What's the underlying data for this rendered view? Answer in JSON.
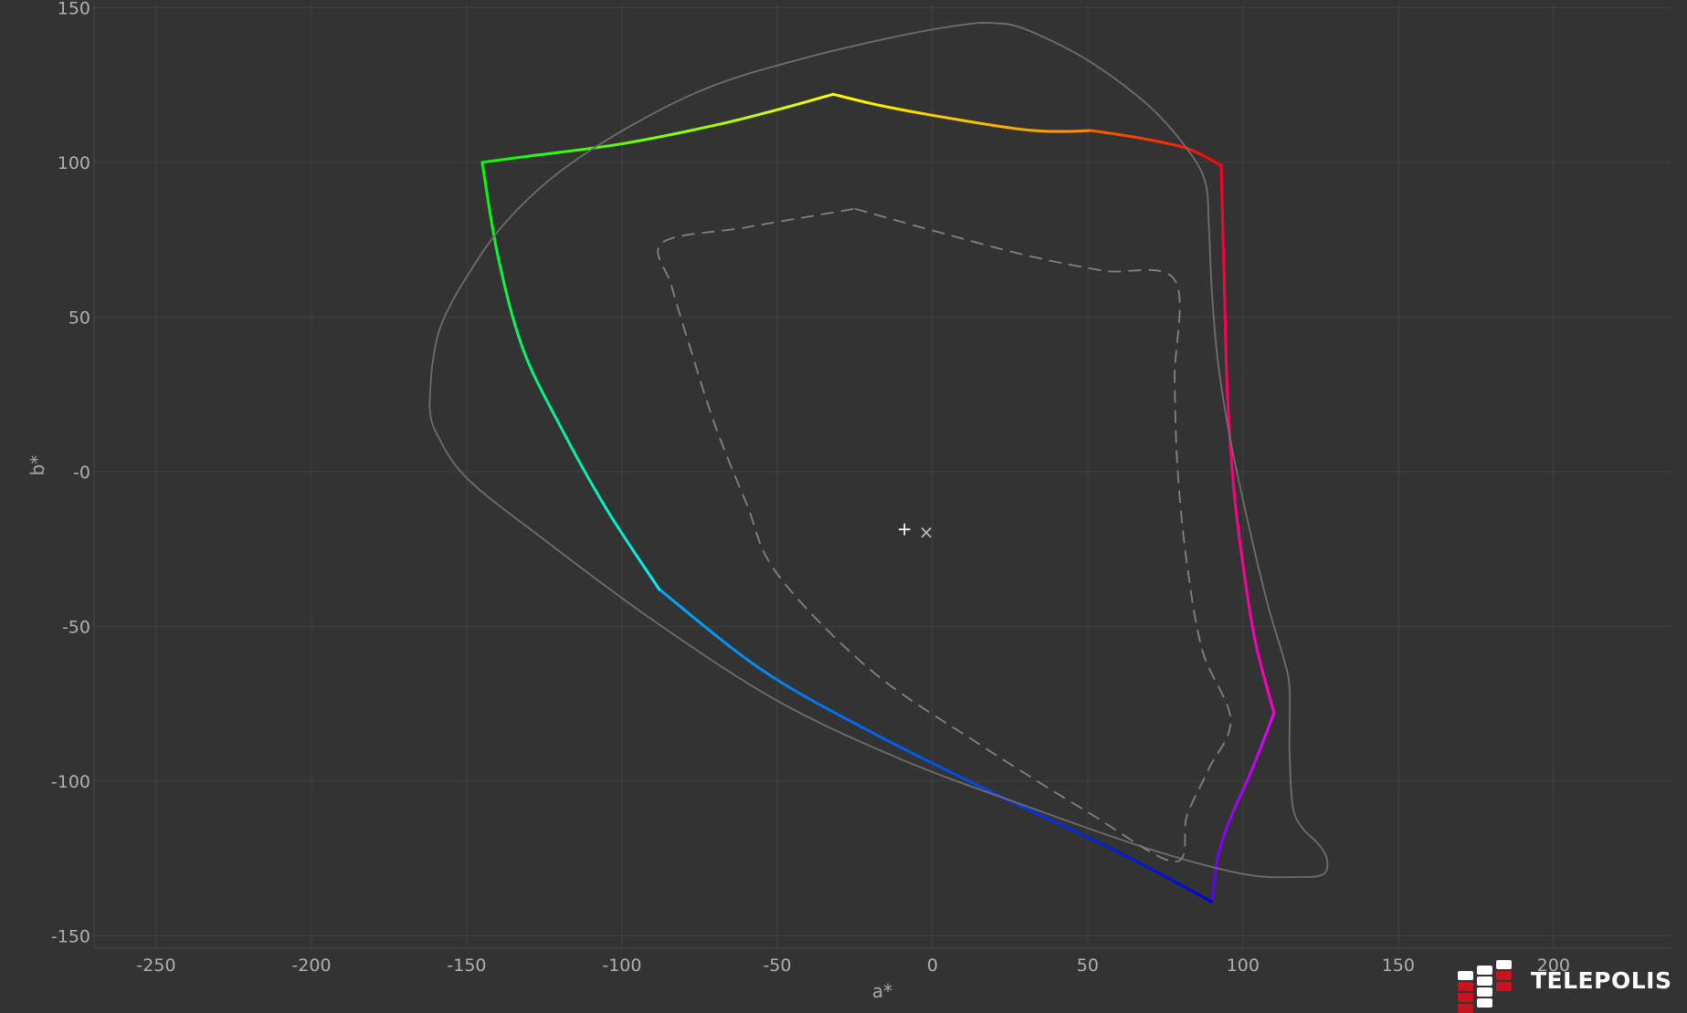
{
  "chart_data": {
    "type": "line",
    "xlabel": "a*",
    "ylabel": "b*",
    "xlim": [
      -270,
      238
    ],
    "ylim": [
      -154,
      151
    ],
    "xticks": [
      -250,
      -200,
      -150,
      -100,
      -50,
      0,
      50,
      100,
      150,
      200
    ],
    "yticks": [
      150,
      100,
      50,
      0,
      -50,
      -100,
      -150
    ],
    "ytick_labels": [
      "150",
      "100",
      "50",
      "-0",
      "-50",
      "-100",
      "-150"
    ],
    "grid": true,
    "background": "#333333",
    "grid_color": "#424242",
    "series": [
      {
        "style": "gradient-solid",
        "segments": [
          {
            "from_color": "#00ff00",
            "to_color": "#ffff00",
            "points": [
              [
                -145,
                100
              ],
              [
                -130,
                102
              ],
              [
                -100,
                106
              ],
              [
                -70,
                112
              ],
              [
                -50,
                117
              ],
              [
                -32,
                122
              ]
            ]
          },
          {
            "from_color": "#ffff00",
            "to_color": "#ff8800",
            "points": [
              [
                -32,
                122
              ],
              [
                -15,
                118
              ],
              [
                10,
                113.5
              ],
              [
                30,
                110.5
              ],
              [
                42,
                110
              ],
              [
                51,
                110.3
              ]
            ]
          },
          {
            "from_color": "#ff6000",
            "to_color": "#ff0000",
            "points": [
              [
                51,
                110.3
              ],
              [
                66,
                108
              ],
              [
                82,
                104.5
              ],
              [
                93,
                99
              ]
            ]
          },
          {
            "from_color": "#ff0020",
            "to_color": "#ff00cc",
            "points": [
              [
                93,
                99
              ],
              [
                94,
                60
              ],
              [
                95,
                25
              ],
              [
                97,
                -5
              ],
              [
                100,
                -30
              ],
              [
                104,
                -55
              ],
              [
                110,
                -78
              ]
            ]
          },
          {
            "from_color": "#ee00ff",
            "to_color": "#5500ff",
            "points": [
              [
                110,
                -78
              ],
              [
                103,
                -96
              ],
              [
                96,
                -112
              ],
              [
                92,
                -124
              ],
              [
                90,
                -139
              ]
            ]
          },
          {
            "from_color": "#0000dd",
            "to_color": "#00aaff",
            "points": [
              [
                90,
                -139
              ],
              [
                60,
                -123
              ],
              [
                20,
                -104
              ],
              [
                -20,
                -84
              ],
              [
                -55,
                -64
              ],
              [
                -88,
                -38
              ]
            ]
          },
          {
            "from_color": "#00eeff",
            "to_color": "#00ff00",
            "points": [
              [
                -88,
                -38
              ],
              [
                -105,
                -12
              ],
              [
                -120,
                15
              ],
              [
                -132,
                40
              ],
              [
                -140,
                70
              ],
              [
                -145,
                100
              ]
            ]
          }
        ]
      },
      {
        "style": "outline",
        "color": "#6e6e6e",
        "points": [
          [
            -162,
            21
          ],
          [
            -161,
            35
          ],
          [
            -158,
            48
          ],
          [
            -150,
            63
          ],
          [
            -138,
            80
          ],
          [
            -120,
            97
          ],
          [
            -95,
            113
          ],
          [
            -70,
            125
          ],
          [
            -40,
            134
          ],
          [
            -10,
            141
          ],
          [
            10,
            144.5
          ],
          [
            20,
            145
          ],
          [
            30,
            143
          ],
          [
            50,
            133
          ],
          [
            70,
            118
          ],
          [
            83,
            103
          ],
          [
            88,
            93
          ],
          [
            89,
            80
          ],
          [
            90,
            58
          ],
          [
            92,
            35
          ],
          [
            96,
            10
          ],
          [
            102,
            -18
          ],
          [
            108,
            -43
          ],
          [
            113,
            -60
          ],
          [
            115,
            -70
          ],
          [
            115,
            -90
          ],
          [
            116,
            -108
          ],
          [
            119,
            -115
          ],
          [
            124,
            -120
          ],
          [
            127,
            -125
          ],
          [
            126,
            -130
          ],
          [
            118,
            -131
          ],
          [
            100,
            -130
          ],
          [
            70,
            -122
          ],
          [
            30,
            -108
          ],
          [
            -10,
            -93
          ],
          [
            -50,
            -74
          ],
          [
            -90,
            -48
          ],
          [
            -125,
            -22
          ],
          [
            -150,
            -2
          ],
          [
            -160,
            13
          ],
          [
            -162,
            21
          ]
        ]
      },
      {
        "style": "dashed",
        "color": "#828282",
        "points": [
          [
            -25,
            85
          ],
          [
            0,
            78
          ],
          [
            30,
            70
          ],
          [
            55,
            65
          ],
          [
            78,
            62
          ],
          [
            78,
            30
          ],
          [
            79,
            0
          ],
          [
            82,
            -30
          ],
          [
            87,
            -58
          ],
          [
            96,
            -80
          ],
          [
            89,
            -96
          ],
          [
            82,
            -111
          ],
          [
            78,
            -126
          ],
          [
            50,
            -110
          ],
          [
            15,
            -88
          ],
          [
            -20,
            -64
          ],
          [
            -50,
            -33
          ],
          [
            -60,
            -10
          ],
          [
            -70,
            15
          ],
          [
            -78,
            40
          ],
          [
            -84,
            60
          ],
          [
            -87,
            74
          ],
          [
            -60,
            79
          ],
          [
            -25,
            85
          ]
        ]
      }
    ],
    "markers": [
      {
        "symbol": "+",
        "x": -9,
        "y": -18.5,
        "color": "#ffffff"
      },
      {
        "symbol": "×",
        "x": -2,
        "y": -19.5,
        "color": "#bdbdbd"
      }
    ]
  },
  "logo": {
    "text": "TELEPOLIS",
    "brick_red": "#c8141e",
    "brick_white": "#ffffff"
  }
}
